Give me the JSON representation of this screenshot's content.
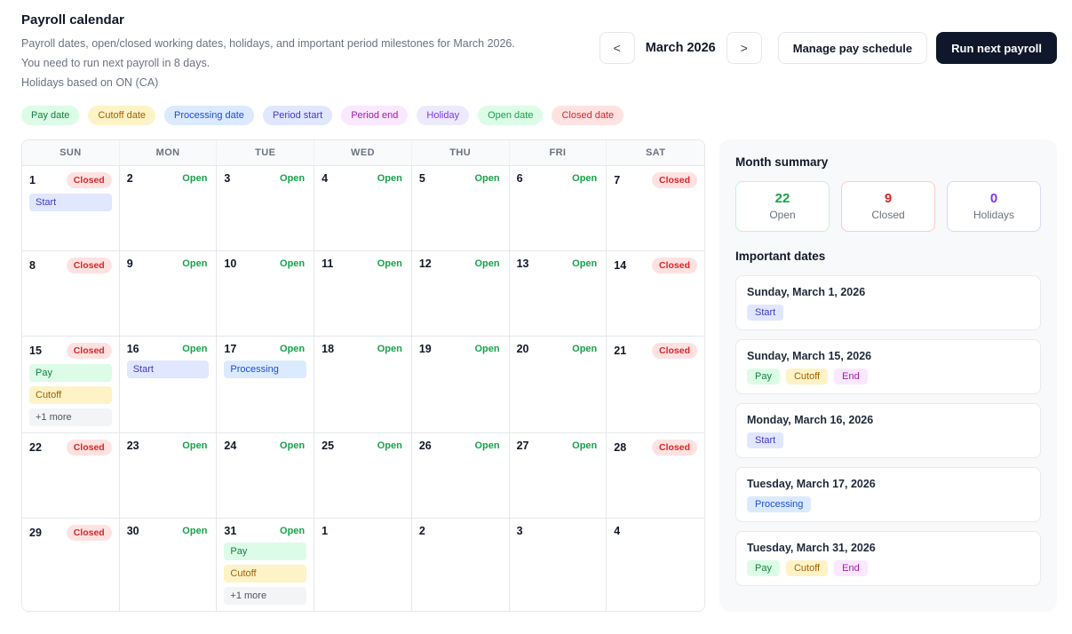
{
  "header": {
    "title": "Payroll calendar",
    "subtitle": "Payroll dates, open/closed working dates, holidays, and important period milestones for March 2026.",
    "note": "You need to run next payroll in 8 days.",
    "holidays_note": "Holidays based on ON (CA)",
    "prev_label": "<",
    "next_label": ">",
    "month_label": "March 2026",
    "manage_button": "Manage pay schedule",
    "run_button": "Run next payroll"
  },
  "colors": {
    "open": "#16a34a",
    "closed": "#dc2626",
    "holiday": "#7c3aed",
    "run_button_bg": "#0f172a"
  },
  "legend": [
    {
      "label": "Pay date",
      "type": "pay"
    },
    {
      "label": "Cutoff date",
      "type": "cutoff"
    },
    {
      "label": "Processing date",
      "type": "processing"
    },
    {
      "label": "Period start",
      "type": "start"
    },
    {
      "label": "Period end",
      "type": "end"
    },
    {
      "label": "Holiday",
      "type": "holiday"
    },
    {
      "label": "Open date",
      "type": "open"
    },
    {
      "label": "Closed date",
      "type": "closed"
    }
  ],
  "calendar": {
    "weekdays": [
      "SUN",
      "MON",
      "TUE",
      "WED",
      "THU",
      "FRI",
      "SAT"
    ],
    "weeks": [
      [
        {
          "day": "1",
          "status": "Closed",
          "badges": [
            {
              "label": "Start",
              "type": "start"
            }
          ]
        },
        {
          "day": "2",
          "status": "Open",
          "badges": []
        },
        {
          "day": "3",
          "status": "Open",
          "badges": []
        },
        {
          "day": "4",
          "status": "Open",
          "badges": []
        },
        {
          "day": "5",
          "status": "Open",
          "badges": []
        },
        {
          "day": "6",
          "status": "Open",
          "badges": []
        },
        {
          "day": "7",
          "status": "Closed",
          "badges": []
        }
      ],
      [
        {
          "day": "8",
          "status": "Closed",
          "badges": []
        },
        {
          "day": "9",
          "status": "Open",
          "badges": []
        },
        {
          "day": "10",
          "status": "Open",
          "badges": []
        },
        {
          "day": "11",
          "status": "Open",
          "badges": []
        },
        {
          "day": "12",
          "status": "Open",
          "badges": []
        },
        {
          "day": "13",
          "status": "Open",
          "badges": []
        },
        {
          "day": "14",
          "status": "Closed",
          "badges": []
        }
      ],
      [
        {
          "day": "15",
          "status": "Closed",
          "badges": [
            {
              "label": "Pay",
              "type": "pay"
            },
            {
              "label": "Cutoff",
              "type": "cutoff"
            },
            {
              "label": "+1 more",
              "type": "more"
            }
          ]
        },
        {
          "day": "16",
          "status": "Open",
          "badges": [
            {
              "label": "Start",
              "type": "start"
            }
          ]
        },
        {
          "day": "17",
          "status": "Open",
          "badges": [
            {
              "label": "Processing",
              "type": "processing"
            }
          ]
        },
        {
          "day": "18",
          "status": "Open",
          "badges": []
        },
        {
          "day": "19",
          "status": "Open",
          "badges": []
        },
        {
          "day": "20",
          "status": "Open",
          "badges": []
        },
        {
          "day": "21",
          "status": "Closed",
          "badges": []
        }
      ],
      [
        {
          "day": "22",
          "status": "Closed",
          "badges": []
        },
        {
          "day": "23",
          "status": "Open",
          "badges": []
        },
        {
          "day": "24",
          "status": "Open",
          "badges": []
        },
        {
          "day": "25",
          "status": "Open",
          "badges": []
        },
        {
          "day": "26",
          "status": "Open",
          "badges": []
        },
        {
          "day": "27",
          "status": "Open",
          "badges": []
        },
        {
          "day": "28",
          "status": "Closed",
          "badges": []
        }
      ],
      [
        {
          "day": "29",
          "status": "Closed",
          "badges": []
        },
        {
          "day": "30",
          "status": "Open",
          "badges": []
        },
        {
          "day": "31",
          "status": "Open",
          "badges": [
            {
              "label": "Pay",
              "type": "pay"
            },
            {
              "label": "Cutoff",
              "type": "cutoff"
            },
            {
              "label": "+1 more",
              "type": "more"
            }
          ]
        },
        {
          "day": "1",
          "status": "",
          "badges": []
        },
        {
          "day": "2",
          "status": "",
          "badges": []
        },
        {
          "day": "3",
          "status": "",
          "badges": []
        },
        {
          "day": "4",
          "status": "",
          "badges": []
        }
      ]
    ]
  },
  "summary": {
    "title": "Month summary",
    "cards": [
      {
        "value": "22",
        "label": "Open",
        "type": "open"
      },
      {
        "value": "9",
        "label": "Closed",
        "type": "closed"
      },
      {
        "value": "0",
        "label": "Holidays",
        "type": "holiday"
      }
    ]
  },
  "important": {
    "title": "Important dates",
    "items": [
      {
        "date": "Sunday, March 1, 2026",
        "badges": [
          {
            "label": "Start",
            "type": "start"
          }
        ]
      },
      {
        "date": "Sunday, March 15, 2026",
        "badges": [
          {
            "label": "Pay",
            "type": "pay"
          },
          {
            "label": "Cutoff",
            "type": "cutoff"
          },
          {
            "label": "End",
            "type": "end"
          }
        ]
      },
      {
        "date": "Monday, March 16, 2026",
        "badges": [
          {
            "label": "Start",
            "type": "start"
          }
        ]
      },
      {
        "date": "Tuesday, March 17, 2026",
        "badges": [
          {
            "label": "Processing",
            "type": "processing"
          }
        ]
      },
      {
        "date": "Tuesday, March 31, 2026",
        "badges": [
          {
            "label": "Pay",
            "type": "pay"
          },
          {
            "label": "Cutoff",
            "type": "cutoff"
          },
          {
            "label": "End",
            "type": "end"
          }
        ]
      }
    ]
  }
}
